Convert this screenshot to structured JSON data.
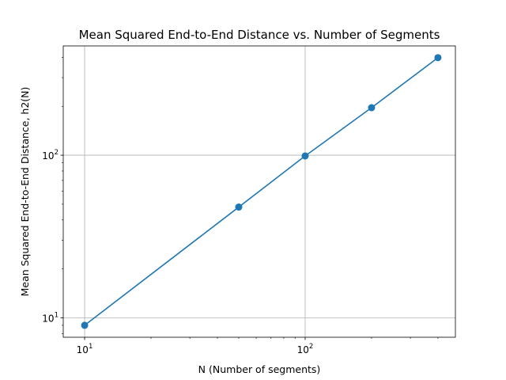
{
  "chart_data": {
    "type": "line",
    "title": "Mean Squared End-to-End Distance vs. Number of Segments",
    "xlabel": "N (Number of segments)",
    "ylabel": "Mean Squared End-to-End Distance, h2(N)",
    "xscale": "log",
    "yscale": "log",
    "xlim": [
      8,
      480
    ],
    "ylim": [
      7.6,
      470
    ],
    "grid": true,
    "grid_at": "major-ticks",
    "x": [
      10,
      50,
      100,
      200,
      400
    ],
    "series": [
      {
        "values": [
          9,
          48,
          99,
          196,
          398
        ],
        "color": "#1f77b4",
        "marker": "circle"
      }
    ],
    "x_major_ticks": [
      {
        "value": 10,
        "base": "10",
        "exp": "1"
      },
      {
        "value": 100,
        "base": "10",
        "exp": "2"
      }
    ],
    "y_major_ticks": [
      {
        "value": 10,
        "base": "10",
        "exp": "1"
      },
      {
        "value": 100,
        "base": "10",
        "exp": "2"
      }
    ],
    "x_minor_ticks": [
      20,
      30,
      40,
      50,
      60,
      70,
      80,
      90,
      200,
      300,
      400
    ],
    "y_minor_ticks": [
      8,
      9,
      20,
      30,
      40,
      50,
      60,
      70,
      80,
      90,
      200,
      300,
      400
    ]
  }
}
